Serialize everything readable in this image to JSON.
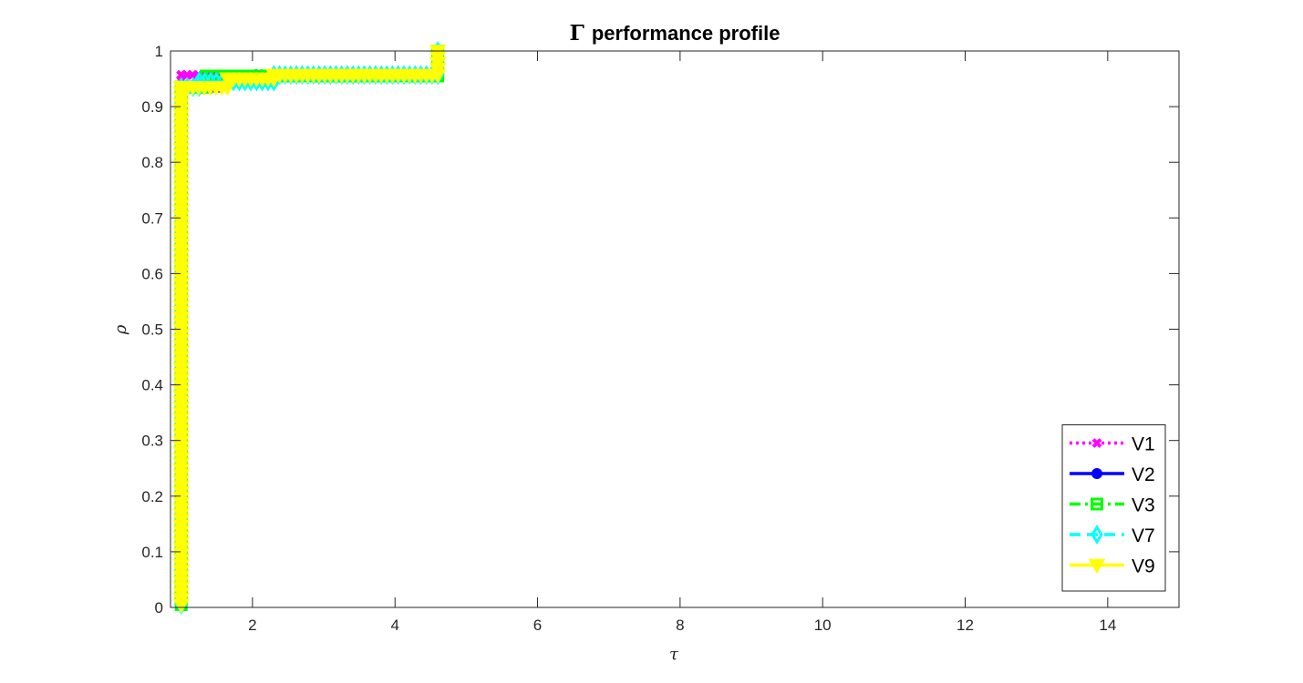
{
  "chart_data": {
    "type": "line",
    "title_symbol": "Γ",
    "title": "performance profile",
    "xlabel": "τ",
    "ylabel": "ρ",
    "xlim": [
      0.85,
      15
    ],
    "ylim": [
      0,
      1
    ],
    "xticks": [
      2,
      4,
      6,
      8,
      10,
      12,
      14
    ],
    "yticks": [
      0,
      0.1,
      0.2,
      0.3,
      0.4,
      0.5,
      0.6,
      0.7,
      0.8,
      0.9,
      1
    ],
    "grid": false,
    "legend_position": "bottom-right",
    "series": [
      {
        "name": "V1",
        "color": "#ff00ff",
        "line_style": "dotted",
        "marker": "x",
        "points": [
          [
            1,
            0.005
          ],
          [
            1,
            0.957
          ],
          [
            4.6,
            0.957
          ],
          [
            4.6,
            1.0
          ]
        ]
      },
      {
        "name": "V2",
        "color": "#0000ff",
        "line_style": "solid",
        "marker": "circle",
        "points": [
          [
            1,
            0.005
          ],
          [
            1,
            0.935
          ],
          [
            1.55,
            0.935
          ],
          [
            1.55,
            0.95
          ],
          [
            2.05,
            0.95
          ],
          [
            2.05,
            0.957
          ],
          [
            4.6,
            0.957
          ],
          [
            4.6,
            1.0
          ]
        ]
      },
      {
        "name": "V3",
        "color": "#00ff00",
        "line_style": "dashdot",
        "marker": "square",
        "points": [
          [
            1,
            0.005
          ],
          [
            1,
            0.935
          ],
          [
            1.35,
            0.935
          ],
          [
            1.35,
            0.955
          ],
          [
            4.6,
            0.955
          ],
          [
            4.6,
            1.0
          ]
        ]
      },
      {
        "name": "V7",
        "color": "#00ffff",
        "line_style": "dashed",
        "marker": "diamond",
        "points": [
          [
            1,
            0.005
          ],
          [
            1,
            0.935
          ],
          [
            1.25,
            0.935
          ],
          [
            1.25,
            0.945
          ],
          [
            2.3,
            0.945
          ],
          [
            2.3,
            0.957
          ],
          [
            4.6,
            0.957
          ],
          [
            4.6,
            1.0
          ]
        ]
      },
      {
        "name": "V9",
        "color": "#ffff00",
        "line_style": "solid",
        "marker": "triangle-down",
        "points": [
          [
            1,
            0.005
          ],
          [
            1,
            0.935
          ],
          [
            1.65,
            0.935
          ],
          [
            1.65,
            0.95
          ],
          [
            2.3,
            0.95
          ],
          [
            2.3,
            0.957
          ],
          [
            4.6,
            0.957
          ],
          [
            4.6,
            1.0
          ]
        ]
      }
    ]
  }
}
